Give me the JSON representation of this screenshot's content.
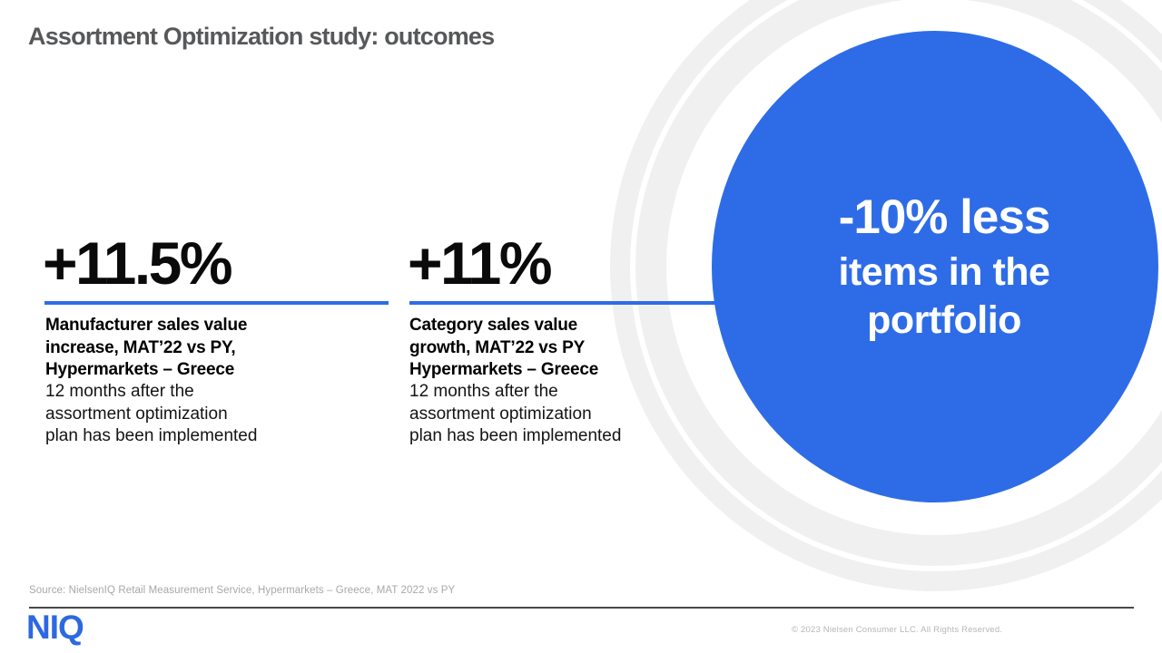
{
  "slide": {
    "title": "Assortment Optimization study: outcomes",
    "stats": [
      {
        "value": "+11.5%",
        "caption_lines": [
          "Manufacturer sales value",
          "increase, MAT’22 vs PY,",
          "Hypermarkets – Greece"
        ],
        "detail_lines": [
          "12 months after the",
          "assortment optimization",
          "plan has been implemented"
        ]
      },
      {
        "value": "+11%",
        "caption_lines": [
          "Category sales value",
          "growth, MAT’22 vs PY",
          "Hypermarkets – Greece"
        ],
        "detail_lines": [
          "12 months after the",
          "assortment optimization",
          "plan has been implemented"
        ]
      }
    ],
    "highlight": {
      "lines": [
        "-10% less",
        "items in the",
        "portfolio"
      ]
    },
    "footer": {
      "source": "Source: NielsenIQ Retail Measurement Service, Hypermarkets – Greece, MAT 2022 vs PY",
      "copyright": "© 2023 Nielsen Consumer LLC. All Rights Reserved.",
      "logo_text": "NIQ"
    },
    "colors": {
      "brand_blue": "#2E6CE7",
      "ring_gray": "#F0F0F1",
      "title_gray": "#57585A",
      "footer_text_gray": "#A8A8AB"
    }
  }
}
